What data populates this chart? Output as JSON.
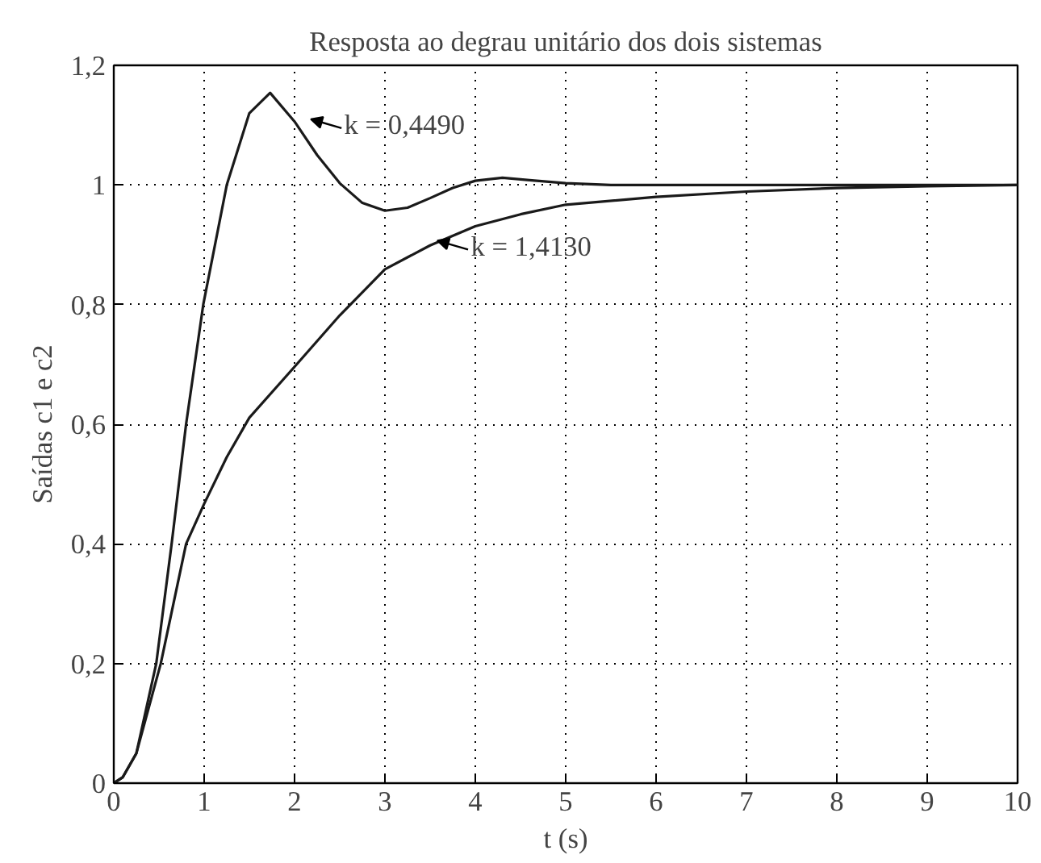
{
  "chart_data": {
    "type": "line",
    "title": "Resposta ao degrau unitário dos dois sistemas",
    "xlabel": "t (s)",
    "ylabel": "Saídas c1 e c2",
    "xlim": [
      0,
      10
    ],
    "ylim": [
      0,
      1.2
    ],
    "xticks": [
      0,
      1,
      2,
      3,
      4,
      5,
      6,
      7,
      8,
      9,
      10
    ],
    "yticks": [
      0,
      {
        "value": 0.2,
        "label": "0,2"
      },
      {
        "value": 0.4,
        "label": "0,4"
      },
      {
        "value": 0.6,
        "label": "0,6"
      },
      {
        "value": 0.8,
        "label": "0,8"
      },
      1,
      {
        "value": 1.2,
        "label": "1,2"
      }
    ],
    "grid": true,
    "marker": "none",
    "line_style": "solid",
    "series": [
      {
        "color": "#1a1a1a",
        "x": [
          0,
          0.1,
          0.25,
          0.47,
          0.64,
          0.8,
          0.99,
          1.25,
          1.5,
          1.73,
          2,
          2.25,
          2.5,
          2.75,
          3,
          3.25,
          3.5,
          3.75,
          4,
          4.3,
          4.6,
          5,
          5.5,
          6,
          7,
          8,
          9,
          10
        ],
        "values": [
          0,
          0.01,
          0.05,
          0.2,
          0.4,
          0.6,
          0.8,
          1.0,
          1.12,
          1.154,
          1.106,
          1.05,
          1.003,
          0.97,
          0.957,
          0.962,
          0.978,
          0.995,
          1.007,
          1.012,
          1.008,
          1.003,
          1.0,
          1.0,
          1.0,
          1.0,
          1.0,
          1.0
        ]
      },
      {
        "color": "#1a1a1a",
        "x": [
          0,
          0.1,
          0.25,
          0.52,
          0.8,
          1,
          1.25,
          1.5,
          2,
          2.5,
          3,
          3.5,
          4,
          4.5,
          5,
          6,
          7,
          8,
          9,
          10
        ],
        "values": [
          0,
          0.01,
          0.05,
          0.2,
          0.4,
          0.467,
          0.545,
          0.611,
          0.696,
          0.782,
          0.859,
          0.899,
          0.931,
          0.951,
          0.967,
          0.98,
          0.989,
          0.995,
          0.998,
          1.0
        ]
      }
    ],
    "annotations": [
      {
        "text": "k = 0,4490",
        "x": 2.15,
        "y": 1.1
      },
      {
        "text": "k = 1,4130",
        "x": 3.55,
        "y": 0.897
      }
    ]
  }
}
